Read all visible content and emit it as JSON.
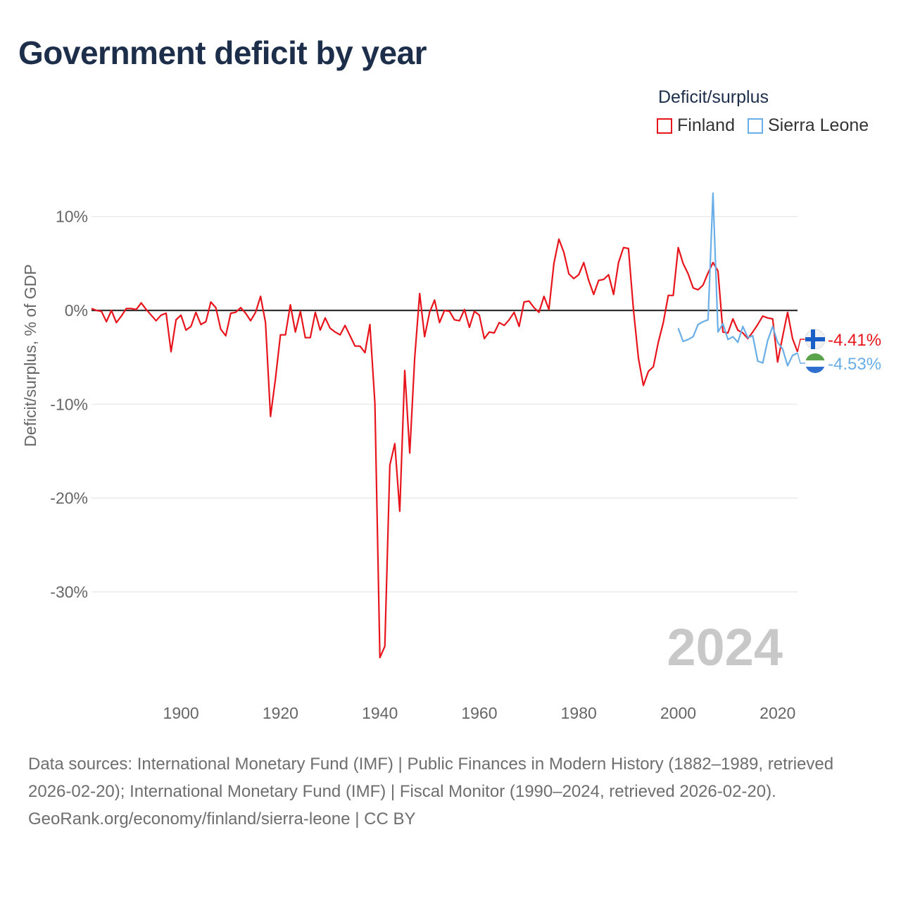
{
  "title": "Government deficit by year",
  "legend": {
    "title": "Deficit/surplus",
    "items": [
      {
        "label": "Finland",
        "color": "#e8141c"
      },
      {
        "label": "Sierra Leone",
        "color": "#6aaee8"
      }
    ]
  },
  "footer": {
    "sources": "Data sources: International Monetary Fund (IMF) | Public Finances in Modern History (1882–1989, retrieved 2026-02-20); International Monetary Fund (IMF) | Fiscal Monitor (1990–2024, retrieved 2026-02-20).",
    "site": "GeoRank.org/economy/finland/sierra-leone | CC BY"
  },
  "chart_data": {
    "type": "line",
    "title": "Government deficit by year",
    "ylabel": "Deficit/surplus, % of GDP",
    "xlabel": "",
    "xlim": [
      1882,
      2024
    ],
    "ylim": [
      -37,
      13
    ],
    "x_ticks": [
      1900,
      1920,
      1940,
      1960,
      1980,
      2000,
      2020
    ],
    "y_ticks": [
      {
        "value": 10,
        "label": "10%"
      },
      {
        "value": 0,
        "label": "0%"
      },
      {
        "value": -10,
        "label": "-10%"
      },
      {
        "value": -20,
        "label": "-20%"
      },
      {
        "value": -30,
        "label": "-30%"
      }
    ],
    "year_label": "2024",
    "end_labels": [
      {
        "series": "Finland",
        "label": "-4.41%",
        "color": "#e8141c"
      },
      {
        "series": "Sierra Leone",
        "label": "-4.53%",
        "color": "#6aaee8"
      }
    ],
    "series": [
      {
        "name": "Finland",
        "color": "#e8141c",
        "x": [
          1882,
          1883,
          1884,
          1885,
          1886,
          1887,
          1888,
          1889,
          1890,
          1891,
          1892,
          1893,
          1894,
          1895,
          1896,
          1897,
          1898,
          1899,
          1900,
          1901,
          1902,
          1903,
          1904,
          1905,
          1906,
          1907,
          1908,
          1909,
          1910,
          1911,
          1912,
          1913,
          1914,
          1915,
          1916,
          1917,
          1918,
          1919,
          1920,
          1921,
          1922,
          1923,
          1924,
          1925,
          1926,
          1927,
          1928,
          1929,
          1930,
          1931,
          1932,
          1933,
          1934,
          1935,
          1936,
          1937,
          1938,
          1939,
          1940,
          1941,
          1942,
          1943,
          1944,
          1945,
          1946,
          1947,
          1948,
          1949,
          1950,
          1951,
          1952,
          1953,
          1954,
          1955,
          1956,
          1957,
          1958,
          1959,
          1960,
          1961,
          1962,
          1963,
          1964,
          1965,
          1966,
          1967,
          1968,
          1969,
          1970,
          1971,
          1972,
          1973,
          1974,
          1975,
          1976,
          1977,
          1978,
          1979,
          1980,
          1981,
          1982,
          1983,
          1984,
          1985,
          1986,
          1987,
          1988,
          1989,
          1990,
          1991,
          1992,
          1993,
          1994,
          1995,
          1996,
          1997,
          1998,
          1999,
          2000,
          2001,
          2002,
          2003,
          2004,
          2005,
          2006,
          2007,
          2008,
          2009,
          2010,
          2011,
          2012,
          2013,
          2014,
          2015,
          2016,
          2017,
          2018,
          2019,
          2020,
          2021,
          2022,
          2023,
          2024
        ],
        "values": [
          0.2,
          0,
          -0.1,
          -1.2,
          0,
          -1.3,
          -0.6,
          0.2,
          0.2,
          0.1,
          0.8,
          0.1,
          -0.5,
          -1.1,
          -0.5,
          -0.3,
          -4.4,
          -1,
          -0.5,
          -2.1,
          -1.7,
          -0.2,
          -1.5,
          -1.2,
          0.9,
          0.3,
          -2,
          -2.7,
          -0.3,
          -0.2,
          0.3,
          -0.3,
          -1.1,
          -0.2,
          1.5,
          -1.3,
          -11.3,
          -7.3,
          -2.6,
          -2.6,
          0.6,
          -2.3,
          -0.1,
          -2.9,
          -2.9,
          -0.2,
          -2.1,
          -0.8,
          -1.9,
          -2.3,
          -2.6,
          -1.6,
          -2.7,
          -3.8,
          -3.8,
          -4.5,
          -1.5,
          -9.9,
          -37,
          -35.8,
          -16.5,
          -14.2,
          -21.4,
          -6.4,
          -15.2,
          -5.1,
          1.8,
          -2.8,
          -0.2,
          1.1,
          -1.3,
          0,
          -0.1,
          -1,
          -1.1,
          0.1,
          -1.8,
          -0.1,
          -0.5,
          -3,
          -2.3,
          -2.4,
          -1.3,
          -1.6,
          -1,
          -0.2,
          -1.7,
          0.9,
          1,
          0.3,
          -0.2,
          1.5,
          0.1,
          5,
          7.6,
          6.2,
          3.9,
          3.4,
          3.8,
          5.1,
          3.2,
          1.7,
          3.2,
          3.3,
          3.8,
          1.7,
          5.1,
          6.7,
          6.6,
          0.1,
          -5.1,
          -8,
          -6.5,
          -6,
          -3.4,
          -1.3,
          1.6,
          1.6,
          6.7,
          5,
          3.9,
          2.4,
          2.2,
          2.7,
          4,
          5.1,
          4.2,
          -2.3,
          -2.4,
          -0.9,
          -2.1,
          -2.4,
          -3,
          -2.3,
          -1.5,
          -0.6,
          -0.8,
          -0.9,
          -5.5,
          -2.8,
          -0.2,
          -3,
          -4.41
        ]
      },
      {
        "name": "Sierra Leone",
        "color": "#6aaee8",
        "x": [
          2000,
          2001,
          2002,
          2003,
          2004,
          2005,
          2006,
          2007,
          2008,
          2009,
          2010,
          2011,
          2012,
          2013,
          2014,
          2015,
          2016,
          2017,
          2018,
          2019,
          2020,
          2021,
          2022,
          2023,
          2024
        ],
        "values": [
          -1.9,
          -3.3,
          -3.1,
          -2.8,
          -1.5,
          -1.2,
          -1,
          12.5,
          -2.3,
          -1.4,
          -3.1,
          -2.8,
          -3.4,
          -1.7,
          -2.9,
          -2.7,
          -5.4,
          -5.6,
          -3.2,
          -1.7,
          -3.4,
          -4.1,
          -5.9,
          -4.8,
          -4.53
        ]
      }
    ]
  }
}
